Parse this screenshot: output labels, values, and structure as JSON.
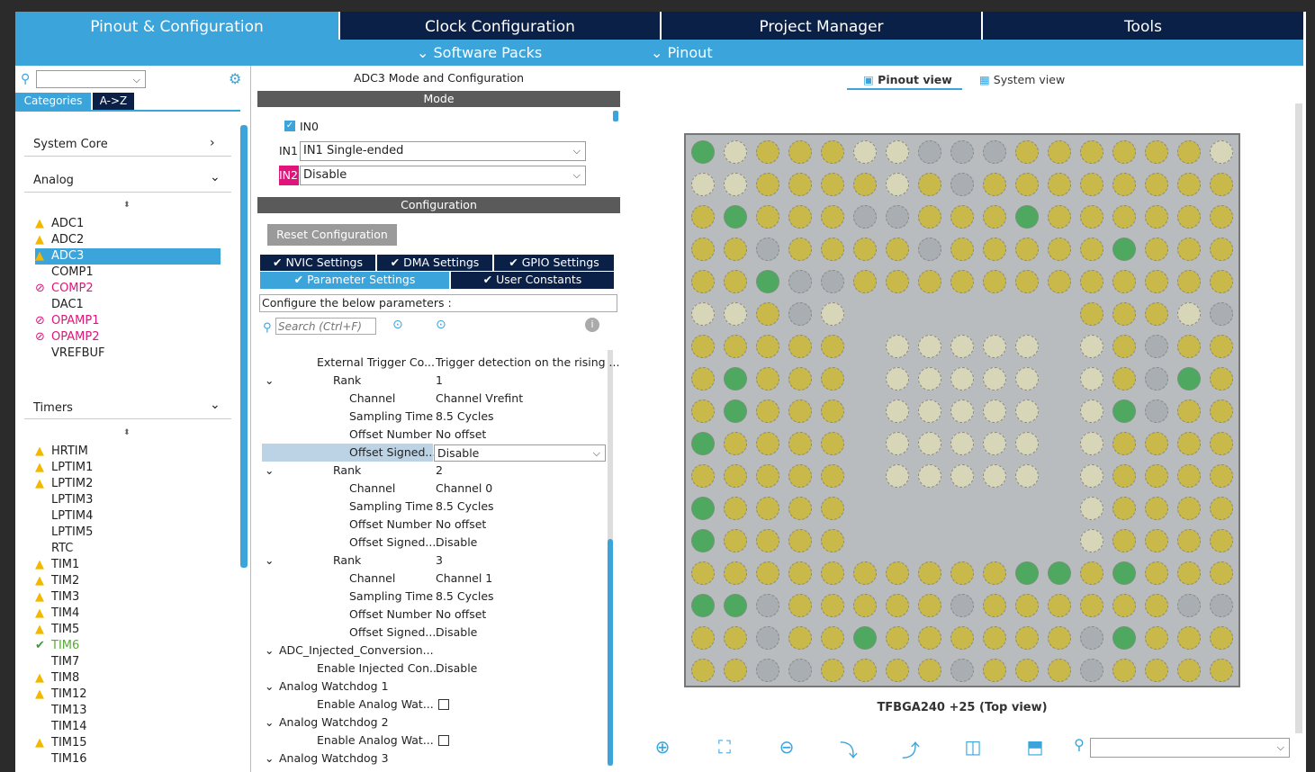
{
  "tabs": [
    "Pinout & Configuration",
    "Clock Configuration",
    "Project Manager",
    "Tools"
  ],
  "subbar": {
    "software_packs": "Software Packs",
    "pinout": "Pinout"
  },
  "left": {
    "search_value": "",
    "categories_tab": "Categories",
    "az_tab": "A->Z",
    "system_core": "System Core",
    "analog": "Analog",
    "timers": "Timers",
    "analog_items": [
      {
        "label": "ADC1",
        "status": "warn"
      },
      {
        "label": "ADC2",
        "status": "warn"
      },
      {
        "label": "ADC3",
        "status": "warn"
      },
      {
        "label": "COMP1",
        "status": "none"
      },
      {
        "label": "COMP2",
        "status": "err"
      },
      {
        "label": "DAC1",
        "status": "none"
      },
      {
        "label": "OPAMP1",
        "status": "err"
      },
      {
        "label": "OPAMP2",
        "status": "err"
      },
      {
        "label": "VREFBUF",
        "status": "none"
      }
    ],
    "timer_items": [
      {
        "label": "HRTIM",
        "status": "warn"
      },
      {
        "label": "LPTIM1",
        "status": "warn"
      },
      {
        "label": "LPTIM2",
        "status": "warn"
      },
      {
        "label": "LPTIM3",
        "status": "none"
      },
      {
        "label": "LPTIM4",
        "status": "none"
      },
      {
        "label": "LPTIM5",
        "status": "none"
      },
      {
        "label": "RTC",
        "status": "none"
      },
      {
        "label": "TIM1",
        "status": "warn"
      },
      {
        "label": "TIM2",
        "status": "warn"
      },
      {
        "label": "TIM3",
        "status": "warn"
      },
      {
        "label": "TIM4",
        "status": "warn"
      },
      {
        "label": "TIM5",
        "status": "warn"
      },
      {
        "label": "TIM6",
        "status": "ok"
      },
      {
        "label": "TIM7",
        "status": "none"
      },
      {
        "label": "TIM8",
        "status": "warn"
      },
      {
        "label": "TIM12",
        "status": "warn"
      },
      {
        "label": "TIM13",
        "status": "none"
      },
      {
        "label": "TIM14",
        "status": "none"
      },
      {
        "label": "TIM15",
        "status": "warn"
      },
      {
        "label": "TIM16",
        "status": "none"
      }
    ]
  },
  "mid": {
    "title": "ADC3 Mode and Configuration",
    "mode_header": "Mode",
    "in0_label": "IN0",
    "in1_label": "IN1",
    "in1_value": "IN1 Single-ended",
    "in2_label": "IN2",
    "in2_value": "Disable",
    "config_header": "Configuration",
    "reset_button": "Reset Configuration",
    "tabs_row1": [
      "NVIC Settings",
      "DMA Settings",
      "GPIO Settings"
    ],
    "tabs_row2": [
      "Parameter Settings",
      "User Constants"
    ],
    "configure_text": "Configure the below parameters :",
    "search_placeholder": "Search (Ctrl+F)",
    "params": [
      {
        "indent": 2,
        "label": "External Trigger Co...",
        "value": "Trigger detection on the rising ...",
        "expand": ""
      },
      {
        "indent": 3,
        "label": "Rank",
        "value": "1",
        "expand": "v"
      },
      {
        "indent": 4,
        "label": "Channel",
        "value": "Channel Vrefint",
        "expand": ""
      },
      {
        "indent": 4,
        "label": "Sampling Time",
        "value": "8.5 Cycles",
        "expand": ""
      },
      {
        "indent": 4,
        "label": "Offset Number",
        "value": "No offset",
        "expand": ""
      },
      {
        "indent": 4,
        "label": "Offset Signed...",
        "value": "Disable",
        "expand": "",
        "selected": true
      },
      {
        "indent": 3,
        "label": "Rank",
        "value": "2",
        "expand": "v"
      },
      {
        "indent": 4,
        "label": "Channel",
        "value": "Channel 0",
        "expand": ""
      },
      {
        "indent": 4,
        "label": "Sampling Time",
        "value": "8.5 Cycles",
        "expand": ""
      },
      {
        "indent": 4,
        "label": "Offset Number",
        "value": "No offset",
        "expand": ""
      },
      {
        "indent": 4,
        "label": "Offset Signed...",
        "value": "Disable",
        "expand": ""
      },
      {
        "indent": 3,
        "label": "Rank",
        "value": "3",
        "expand": "v"
      },
      {
        "indent": 4,
        "label": "Channel",
        "value": "Channel 1",
        "expand": ""
      },
      {
        "indent": 4,
        "label": "Sampling Time",
        "value": "8.5 Cycles",
        "expand": ""
      },
      {
        "indent": 4,
        "label": "Offset Number",
        "value": "No offset",
        "expand": ""
      },
      {
        "indent": 4,
        "label": "Offset Signed...",
        "value": "Disable",
        "expand": ""
      },
      {
        "indent": 1,
        "label": "ADC_Injected_Conversion...",
        "value": "",
        "expand": "v"
      },
      {
        "indent": 2,
        "label": "Enable Injected Con...",
        "value": "Disable",
        "expand": ""
      },
      {
        "indent": 1,
        "label": "Analog Watchdog 1",
        "value": "",
        "expand": "v"
      },
      {
        "indent": 2,
        "label": "Enable Analog Wat...",
        "value": "",
        "expand": "",
        "checkbox": true
      },
      {
        "indent": 1,
        "label": "Analog Watchdog 2",
        "value": "",
        "expand": "v"
      },
      {
        "indent": 2,
        "label": "Enable Analog Wat...",
        "value": "",
        "expand": "",
        "checkbox": true
      },
      {
        "indent": 1,
        "label": "Analog Watchdog 3",
        "value": "",
        "expand": "v"
      }
    ]
  },
  "right": {
    "pinout_view": "Pinout view",
    "system_view": "System view",
    "chip_label": "TFBGA240 +25 (Top view)",
    "search_value": "",
    "colors": {
      "yellow": "#c9b94a",
      "green": "#4fa860",
      "gray": "#a9aeb2",
      "beige": "#d8d6b8",
      "chip": "#b9bcbe"
    }
  }
}
